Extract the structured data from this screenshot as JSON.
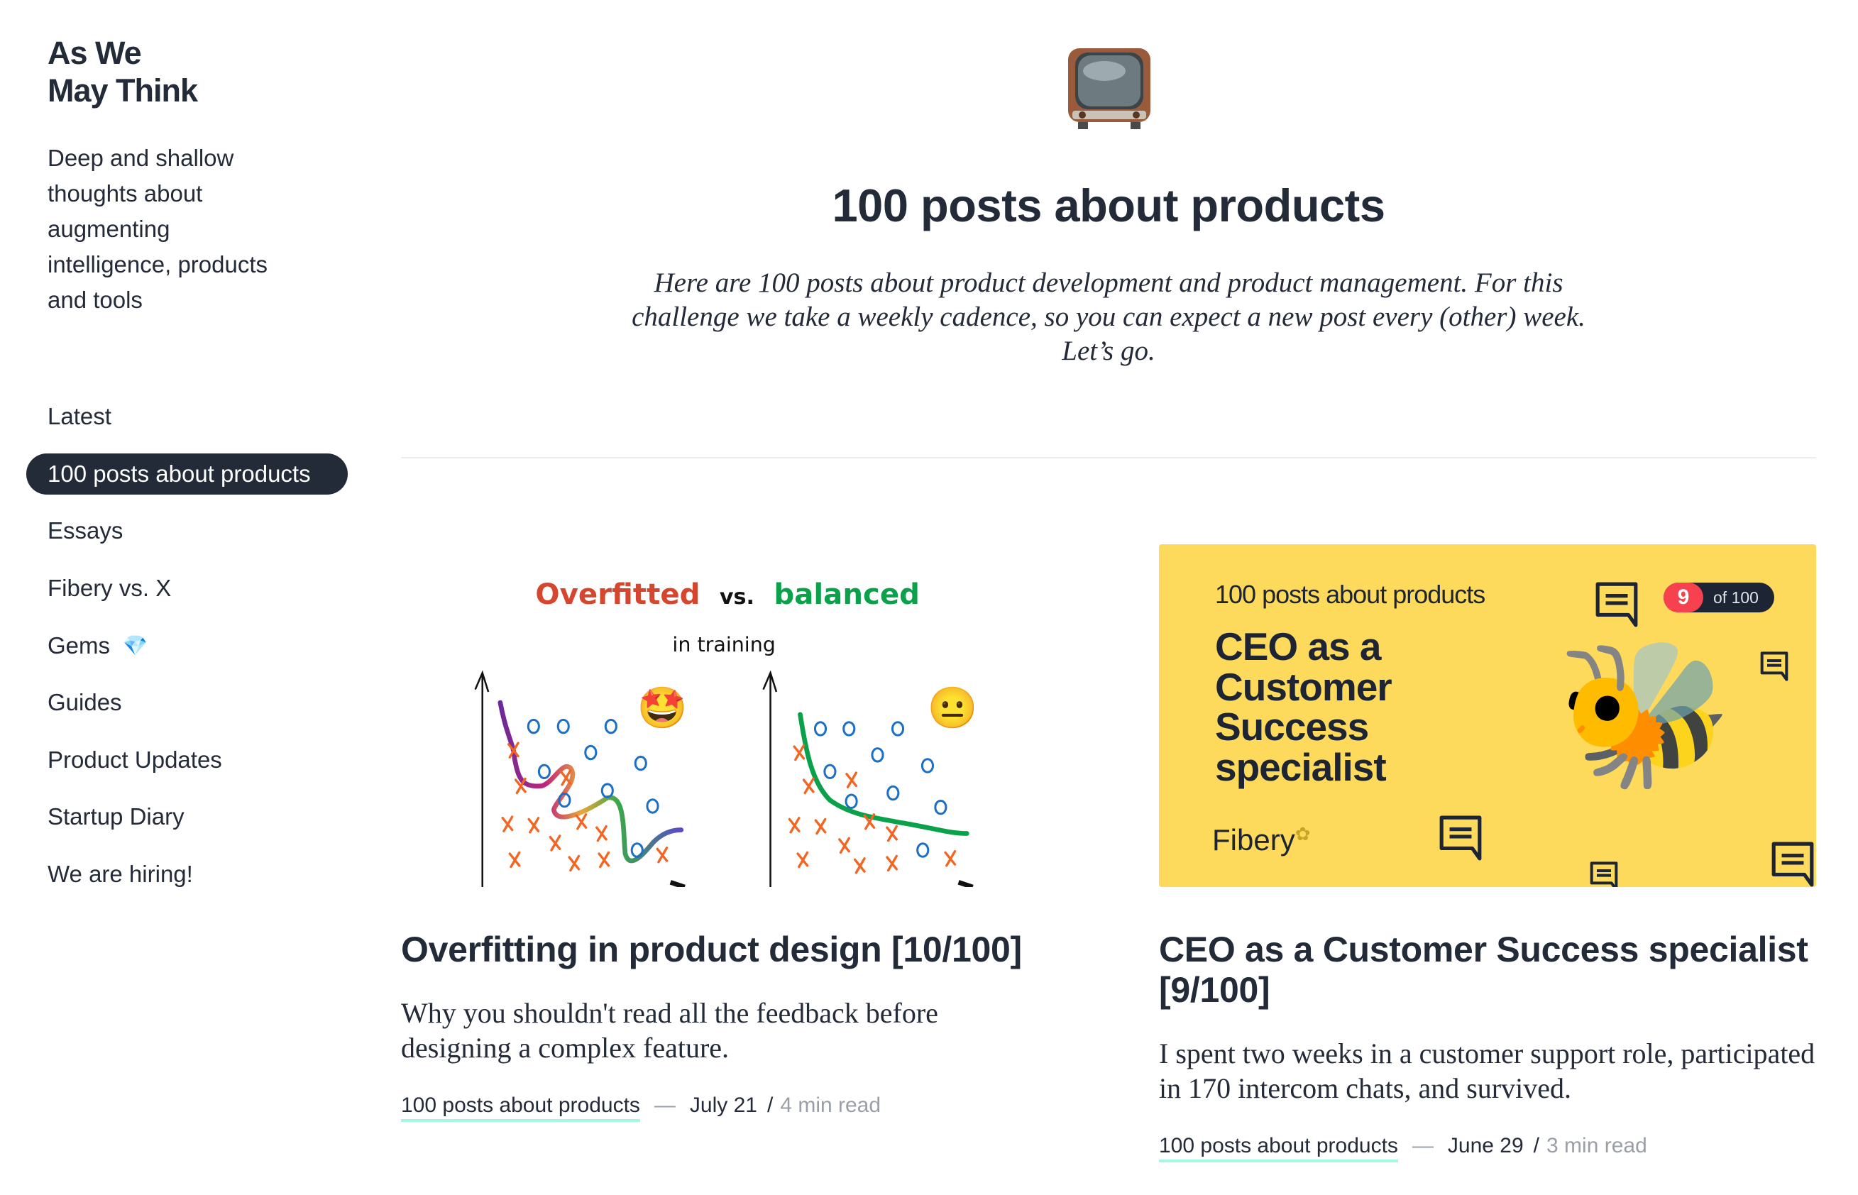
{
  "site": {
    "title_line1": "As We",
    "title_line2": "May Think",
    "tagline": "Deep and shallow thoughts about augmenting intelligence, products and tools"
  },
  "nav": {
    "items": [
      {
        "label": "Latest",
        "active": false
      },
      {
        "label": "100 posts about products",
        "active": true
      },
      {
        "label": "Essays",
        "active": false
      },
      {
        "label": "Fibery vs. X",
        "active": false
      },
      {
        "label": "Gems",
        "active": false,
        "icon": "gem-icon"
      },
      {
        "label": "Guides",
        "active": false
      },
      {
        "label": "Product Updates",
        "active": false
      },
      {
        "label": "Startup Diary",
        "active": false
      },
      {
        "label": "We are hiring!",
        "active": false
      }
    ]
  },
  "header": {
    "icon": "television-icon",
    "emoji": "📺",
    "title": "100 posts about products",
    "intro": "Here are 100 posts about product development and product management. For this challenge we take a weekly cadence, so you can expect a new post every (other) week. Let’s go."
  },
  "posts": [
    {
      "title": "Overfitting in product design [10/100]",
      "excerpt": "Why you shouldn't read all the feedback before designing a complex feature.",
      "category": "100 posts about products",
      "date": "July 21",
      "read_time": "4 min read",
      "image": {
        "heading_a": "Overfitted",
        "heading_vs": "vs.",
        "heading_b": "balanced",
        "subheading": "in training",
        "emoji_left": "🤩",
        "emoji_right": "😐"
      }
    },
    {
      "title": "CEO as a Customer Success specialist [9/100]",
      "excerpt": "I spent two weeks in a customer support role, participated in 170 intercom chats, and survived.",
      "category": "100 posts about products",
      "date": "June 29",
      "read_time": "3 min read",
      "image": {
        "series": "100 posts about products",
        "title": "CEO as a Customer Success specialist",
        "badge_number": "9",
        "badge_total": "of 100",
        "logo": "Fibery",
        "emoji": "🐝"
      }
    }
  ],
  "meta": {
    "dash": "—",
    "slash": "/"
  },
  "colors": {
    "text": "#232a38",
    "banner": "#fdd95c",
    "badge_red": "#f7414f",
    "underline": "#a3f7e3",
    "balanced_green": "#0aa14a",
    "cross_orange": "#f26522",
    "circle_blue": "#1a6fc9"
  }
}
